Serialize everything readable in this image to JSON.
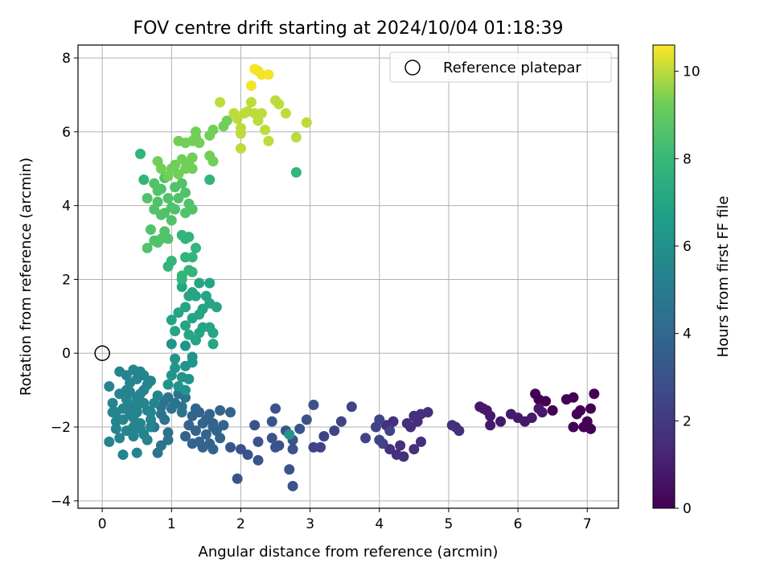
{
  "chart_data": {
    "type": "scatter",
    "title": "FOV centre drift starting at 2024/10/04 01:18:39",
    "xlabel": "Angular distance from reference (arcmin)",
    "ylabel": "Rotation from reference (arcmin)",
    "xlim": [
      -0.35,
      7.45
    ],
    "ylim": [
      -4.2,
      8.35
    ],
    "xticks": [
      0,
      1,
      2,
      3,
      4,
      5,
      6,
      7
    ],
    "yticks": [
      -4,
      -2,
      0,
      2,
      4,
      6,
      8
    ],
    "grid": true,
    "colormap": "viridis",
    "colorbar": {
      "label": "Hours from first FF file",
      "range": [
        0,
        10.6
      ],
      "ticks": [
        0,
        2,
        4,
        6,
        8,
        10
      ]
    },
    "reference": {
      "label": "Reference platepar",
      "x": 0,
      "y": 0
    },
    "legend": "top-right",
    "series": [
      {
        "t": 0.0,
        "points": [
          [
            6.25,
            -1.1
          ],
          [
            6.3,
            -1.25
          ],
          [
            6.4,
            -1.3
          ],
          [
            6.5,
            -1.55
          ],
          [
            6.7,
            -1.25
          ],
          [
            6.8,
            -1.2
          ],
          [
            6.9,
            -1.55
          ],
          [
            7.05,
            -1.5
          ],
          [
            7.1,
            -1.1
          ],
          [
            6.85,
            -1.65
          ],
          [
            7.0,
            -1.95
          ],
          [
            7.05,
            -2.05
          ],
          [
            6.95,
            -2.0
          ],
          [
            6.8,
            -2.0
          ],
          [
            7.0,
            -1.85
          ]
        ]
      },
      {
        "t": 0.8,
        "points": [
          [
            5.45,
            -1.45
          ],
          [
            5.55,
            -1.55
          ],
          [
            5.6,
            -1.7
          ],
          [
            5.6,
            -1.95
          ],
          [
            5.75,
            -1.85
          ],
          [
            5.9,
            -1.65
          ],
          [
            6.0,
            -1.75
          ],
          [
            6.1,
            -1.85
          ],
          [
            6.2,
            -1.75
          ],
          [
            6.3,
            -1.5
          ],
          [
            6.35,
            -1.6
          ],
          [
            5.5,
            -1.5
          ]
        ]
      },
      {
        "t": 1.6,
        "points": [
          [
            4.5,
            -1.7
          ],
          [
            4.6,
            -1.65
          ],
          [
            4.7,
            -1.6
          ],
          [
            4.55,
            -1.85
          ],
          [
            4.4,
            -1.9
          ],
          [
            4.6,
            -2.4
          ],
          [
            4.5,
            -2.6
          ],
          [
            4.35,
            -2.8
          ],
          [
            4.25,
            -2.75
          ],
          [
            4.15,
            -2.6
          ],
          [
            4.3,
            -2.5
          ],
          [
            5.1,
            -2.0
          ],
          [
            5.15,
            -2.1
          ],
          [
            5.05,
            -1.95
          ],
          [
            4.45,
            -2.0
          ],
          [
            4.1,
            -1.95
          ],
          [
            4.2,
            -1.85
          ]
        ]
      },
      {
        "t": 2.4,
        "points": [
          [
            3.6,
            -1.45
          ],
          [
            3.45,
            -1.85
          ],
          [
            3.35,
            -2.1
          ],
          [
            3.2,
            -2.25
          ],
          [
            3.15,
            -2.55
          ],
          [
            3.05,
            -2.55
          ],
          [
            3.95,
            -2.0
          ],
          [
            4.0,
            -2.35
          ],
          [
            4.05,
            -2.45
          ],
          [
            4.15,
            -2.1
          ],
          [
            3.8,
            -2.3
          ],
          [
            4.0,
            -1.8
          ]
        ]
      },
      {
        "t": 3.1,
        "points": [
          [
            2.5,
            -1.5
          ],
          [
            2.45,
            -1.85
          ],
          [
            2.65,
            -2.1
          ],
          [
            2.75,
            -2.35
          ],
          [
            2.75,
            -2.6
          ],
          [
            2.55,
            -2.5
          ],
          [
            2.7,
            -3.15
          ],
          [
            2.75,
            -3.6
          ],
          [
            2.2,
            -1.95
          ],
          [
            2.25,
            -2.4
          ],
          [
            2.25,
            -2.9
          ],
          [
            2.1,
            -2.75
          ],
          [
            1.95,
            -3.4
          ],
          [
            2.5,
            -2.55
          ],
          [
            2.45,
            -2.3
          ],
          [
            2.85,
            -2.05
          ],
          [
            3.05,
            -1.4
          ],
          [
            2.95,
            -1.8
          ],
          [
            2.0,
            -2.6
          ],
          [
            1.85,
            -2.55
          ]
        ]
      },
      {
        "t": 3.8,
        "points": [
          [
            1.3,
            -1.7
          ],
          [
            1.4,
            -1.6
          ],
          [
            1.5,
            -1.8
          ],
          [
            1.6,
            -1.9
          ],
          [
            1.7,
            -1.55
          ],
          [
            1.85,
            -1.6
          ],
          [
            1.5,
            -2.2
          ],
          [
            1.4,
            -2.4
          ],
          [
            1.55,
            -2.45
          ],
          [
            1.7,
            -2.3
          ],
          [
            1.6,
            -2.6
          ],
          [
            1.45,
            -2.55
          ],
          [
            1.35,
            -2.1
          ],
          [
            1.25,
            -1.95
          ],
          [
            1.2,
            -2.25
          ],
          [
            1.65,
            -2.1
          ],
          [
            1.75,
            -1.95
          ],
          [
            1.55,
            -1.65
          ],
          [
            1.45,
            -1.9
          ],
          [
            1.35,
            -1.5
          ],
          [
            1.3,
            -2.45
          ],
          [
            1.6,
            -2.0
          ]
        ]
      },
      {
        "t": 4.6,
        "points": [
          [
            0.95,
            -1.2
          ],
          [
            1.0,
            -1.5
          ],
          [
            1.05,
            -1.35
          ],
          [
            1.15,
            -1.45
          ],
          [
            1.1,
            -1.1
          ],
          [
            0.9,
            -1.8
          ],
          [
            0.95,
            -2.15
          ],
          [
            0.95,
            -2.35
          ],
          [
            0.85,
            -2.5
          ],
          [
            0.8,
            -2.7
          ],
          [
            0.75,
            -2.0
          ],
          [
            0.85,
            -1.65
          ],
          [
            1.15,
            -1.6
          ],
          [
            1.2,
            -1.2
          ],
          [
            0.85,
            -1.45
          ],
          [
            0.9,
            -1.3
          ]
        ]
      },
      {
        "t": 5.4,
        "points": [
          [
            0.1,
            -0.9
          ],
          [
            0.15,
            -1.6
          ],
          [
            0.2,
            -2.05
          ],
          [
            0.25,
            -2.3
          ],
          [
            0.3,
            -2.75
          ],
          [
            0.5,
            -2.7
          ],
          [
            0.45,
            -2.25
          ],
          [
            0.35,
            -2.1
          ],
          [
            0.2,
            -1.85
          ],
          [
            0.15,
            -1.35
          ],
          [
            0.25,
            -1.1
          ],
          [
            0.35,
            -1.0
          ],
          [
            0.4,
            -0.8
          ],
          [
            0.55,
            -0.5
          ],
          [
            0.35,
            -0.6
          ],
          [
            0.45,
            -0.45
          ],
          [
            0.6,
            -0.6
          ],
          [
            0.7,
            -0.75
          ],
          [
            0.6,
            -1.0
          ],
          [
            0.5,
            -1.2
          ],
          [
            0.4,
            -1.4
          ],
          [
            0.5,
            -1.6
          ],
          [
            0.65,
            -1.55
          ],
          [
            0.7,
            -1.8
          ],
          [
            0.55,
            -1.9
          ],
          [
            0.6,
            -2.2
          ],
          [
            0.7,
            -2.0
          ],
          [
            0.75,
            -1.35
          ],
          [
            0.8,
            -1.15
          ],
          [
            0.45,
            -1.75
          ],
          [
            0.3,
            -1.5
          ],
          [
            0.55,
            -2.05
          ],
          [
            0.25,
            -0.5
          ],
          [
            0.3,
            -1.8
          ],
          [
            0.1,
            -2.4
          ],
          [
            0.65,
            -2.35
          ],
          [
            0.4,
            -1.05
          ],
          [
            0.5,
            -0.7
          ],
          [
            0.6,
            -1.35
          ],
          [
            0.35,
            -1.25
          ],
          [
            0.45,
            -2.0
          ],
          [
            0.2,
            -1.6
          ],
          [
            0.7,
            -1.6
          ],
          [
            0.5,
            -1.45
          ],
          [
            0.55,
            -1.1
          ],
          [
            0.4,
            -1.65
          ],
          [
            0.65,
            -0.85
          ]
        ]
      },
      {
        "t": 6.2,
        "points": [
          [
            1.0,
            -0.6
          ],
          [
            1.05,
            -0.4
          ],
          [
            1.15,
            -0.65
          ],
          [
            1.25,
            -0.7
          ],
          [
            1.2,
            -0.35
          ],
          [
            1.3,
            -0.25
          ],
          [
            1.0,
            0.25
          ],
          [
            1.05,
            -0.15
          ],
          [
            0.95,
            -0.85
          ],
          [
            1.1,
            -0.9
          ],
          [
            1.2,
            -1.0
          ],
          [
            2.7,
            -2.2
          ],
          [
            1.2,
            0.2
          ],
          [
            1.3,
            -0.1
          ]
        ]
      },
      {
        "t": 7.0,
        "points": [
          [
            1.0,
            0.9
          ],
          [
            1.05,
            0.6
          ],
          [
            1.1,
            1.1
          ],
          [
            1.2,
            0.75
          ],
          [
            1.25,
            0.5
          ],
          [
            1.35,
            0.35
          ],
          [
            1.4,
            0.55
          ],
          [
            1.45,
            0.7
          ],
          [
            1.55,
            0.7
          ],
          [
            1.6,
            0.55
          ],
          [
            1.6,
            0.25
          ],
          [
            1.3,
            0.95
          ],
          [
            1.2,
            1.25
          ],
          [
            1.35,
            1.55
          ],
          [
            1.45,
            1.2
          ],
          [
            1.55,
            1.35
          ],
          [
            1.65,
            1.25
          ],
          [
            1.3,
            1.65
          ],
          [
            1.4,
            1.9
          ],
          [
            1.55,
            1.9
          ],
          [
            1.15,
            1.8
          ],
          [
            1.25,
            1.55
          ],
          [
            1.4,
            1.05
          ],
          [
            1.5,
            1.55
          ]
        ]
      },
      {
        "t": 7.8,
        "points": [
          [
            1.15,
            2.0
          ],
          [
            1.25,
            2.25
          ],
          [
            1.2,
            2.6
          ],
          [
            1.3,
            2.6
          ],
          [
            1.35,
            2.85
          ],
          [
            1.2,
            3.1
          ],
          [
            1.25,
            3.15
          ],
          [
            1.15,
            3.2
          ],
          [
            0.95,
            2.35
          ],
          [
            1.0,
            2.5
          ],
          [
            1.15,
            2.1
          ],
          [
            1.3,
            2.2
          ],
          [
            1.55,
            4.7
          ],
          [
            0.6,
            4.7
          ],
          [
            0.55,
            5.4
          ],
          [
            2.8,
            4.9
          ]
        ]
      },
      {
        "t": 8.6,
        "points": [
          [
            0.85,
            3.1
          ],
          [
            0.9,
            3.3
          ],
          [
            0.95,
            3.1
          ],
          [
            0.8,
            3.0
          ],
          [
            0.65,
            2.85
          ],
          [
            0.7,
            3.35
          ],
          [
            0.75,
            3.05
          ],
          [
            0.9,
            3.8
          ],
          [
            1.0,
            3.6
          ],
          [
            1.05,
            3.9
          ],
          [
            1.2,
            3.8
          ],
          [
            1.3,
            3.9
          ],
          [
            1.25,
            4.05
          ],
          [
            1.1,
            4.2
          ],
          [
            1.05,
            4.5
          ],
          [
            1.2,
            4.35
          ],
          [
            0.75,
            3.9
          ],
          [
            0.8,
            4.1
          ],
          [
            0.65,
            4.2
          ],
          [
            0.85,
            4.45
          ],
          [
            0.75,
            4.6
          ],
          [
            0.9,
            4.75
          ],
          [
            0.95,
            4.2
          ],
          [
            1.15,
            4.6
          ],
          [
            0.8,
            4.4
          ],
          [
            1.0,
            3.95
          ],
          [
            0.85,
            3.75
          ]
        ]
      },
      {
        "t": 9.3,
        "points": [
          [
            0.95,
            4.8
          ],
          [
            1.0,
            5.0
          ],
          [
            1.1,
            4.85
          ],
          [
            1.05,
            5.1
          ],
          [
            1.15,
            5.25
          ],
          [
            1.2,
            5.0
          ],
          [
            1.25,
            5.15
          ],
          [
            1.3,
            5.3
          ],
          [
            1.3,
            5.0
          ],
          [
            1.2,
            5.7
          ],
          [
            1.3,
            5.75
          ],
          [
            1.35,
            5.85
          ],
          [
            1.4,
            5.7
          ],
          [
            1.55,
            5.9
          ],
          [
            1.55,
            5.35
          ],
          [
            1.6,
            5.2
          ],
          [
            1.6,
            6.05
          ],
          [
            1.75,
            6.15
          ],
          [
            1.8,
            6.3
          ],
          [
            0.8,
            5.2
          ],
          [
            0.85,
            5.0
          ],
          [
            1.1,
            5.75
          ],
          [
            1.35,
            6.0
          ]
        ]
      },
      {
        "t": 10.0,
        "points": [
          [
            1.9,
            6.5
          ],
          [
            1.95,
            6.35
          ],
          [
            2.05,
            6.5
          ],
          [
            2.1,
            6.55
          ],
          [
            2.15,
            6.8
          ],
          [
            2.2,
            6.5
          ],
          [
            2.3,
            6.5
          ],
          [
            2.25,
            6.3
          ],
          [
            2.35,
            6.05
          ],
          [
            2.4,
            5.75
          ],
          [
            2.0,
            5.95
          ],
          [
            2.0,
            5.55
          ],
          [
            2.0,
            6.1
          ],
          [
            1.7,
            6.8
          ],
          [
            2.5,
            6.85
          ],
          [
            2.55,
            6.75
          ],
          [
            2.65,
            6.5
          ],
          [
            2.8,
            5.85
          ],
          [
            2.95,
            6.25
          ]
        ]
      },
      {
        "t": 10.5,
        "points": [
          [
            2.2,
            7.7
          ],
          [
            2.25,
            7.65
          ],
          [
            2.3,
            7.55
          ],
          [
            2.4,
            7.55
          ],
          [
            2.15,
            7.25
          ]
        ]
      }
    ]
  }
}
